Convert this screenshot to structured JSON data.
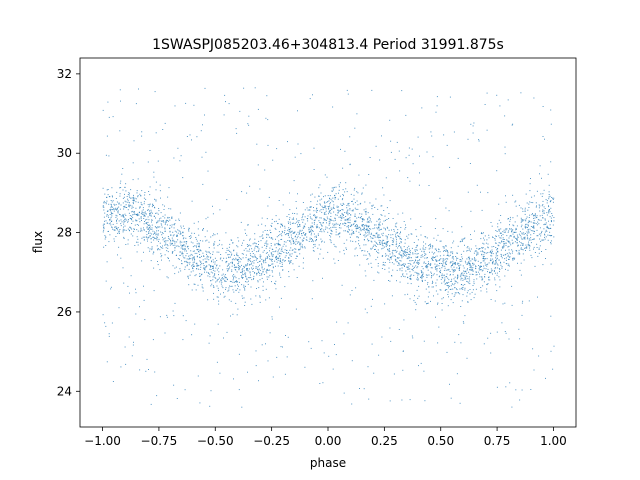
{
  "chart_data": {
    "type": "scatter",
    "title": "1SWASPJ085203.46+304813.4 Period 31991.875s",
    "xlabel": "phase",
    "ylabel": "flux",
    "xlim": [
      -1.1,
      1.1
    ],
    "ylim": [
      23.1,
      32.4
    ],
    "xticks": [
      -1.0,
      -0.75,
      -0.5,
      -0.25,
      0.0,
      0.25,
      0.5,
      0.75,
      1.0
    ],
    "xtick_labels": [
      "−1.00",
      "−0.75",
      "−0.50",
      "−0.25",
      "0.00",
      "0.25",
      "0.50",
      "0.75",
      "1.00"
    ],
    "yticks": [
      24,
      26,
      28,
      30,
      32
    ],
    "ytick_labels": [
      "24",
      "26",
      "28",
      "30",
      "32"
    ],
    "grid": false,
    "marker_color": "#1f77b4",
    "series": [
      {
        "x": [
          -1.0,
          -0.9,
          -0.8,
          -0.7,
          -0.6,
          -0.5,
          -0.4,
          -0.3,
          -0.2,
          -0.1,
          0.0,
          0.05,
          0.1,
          0.2,
          0.3,
          0.4,
          0.5,
          0.6,
          0.7,
          0.8,
          0.9,
          1.0
        ],
        "y": [
          28.45,
          28.5,
          28.3,
          27.9,
          27.45,
          27.1,
          27.1,
          27.3,
          27.65,
          28.1,
          28.45,
          28.5,
          28.4,
          28.0,
          27.6,
          27.2,
          27.05,
          27.05,
          27.3,
          27.75,
          28.2,
          28.45
        ],
        "yhigh": [
          28.9,
          28.95,
          28.8,
          28.35,
          27.9,
          27.55,
          27.55,
          27.8,
          28.1,
          28.55,
          28.95,
          29.0,
          28.9,
          28.5,
          28.05,
          27.65,
          27.5,
          27.5,
          27.75,
          28.2,
          28.7,
          29.0
        ],
        "ylow": [
          28.0,
          28.05,
          27.85,
          27.45,
          27.0,
          26.65,
          26.65,
          26.85,
          27.2,
          27.65,
          28.0,
          28.05,
          27.95,
          27.55,
          27.15,
          26.75,
          26.6,
          26.6,
          26.85,
          27.3,
          27.75,
          28.0
        ]
      }
    ]
  }
}
